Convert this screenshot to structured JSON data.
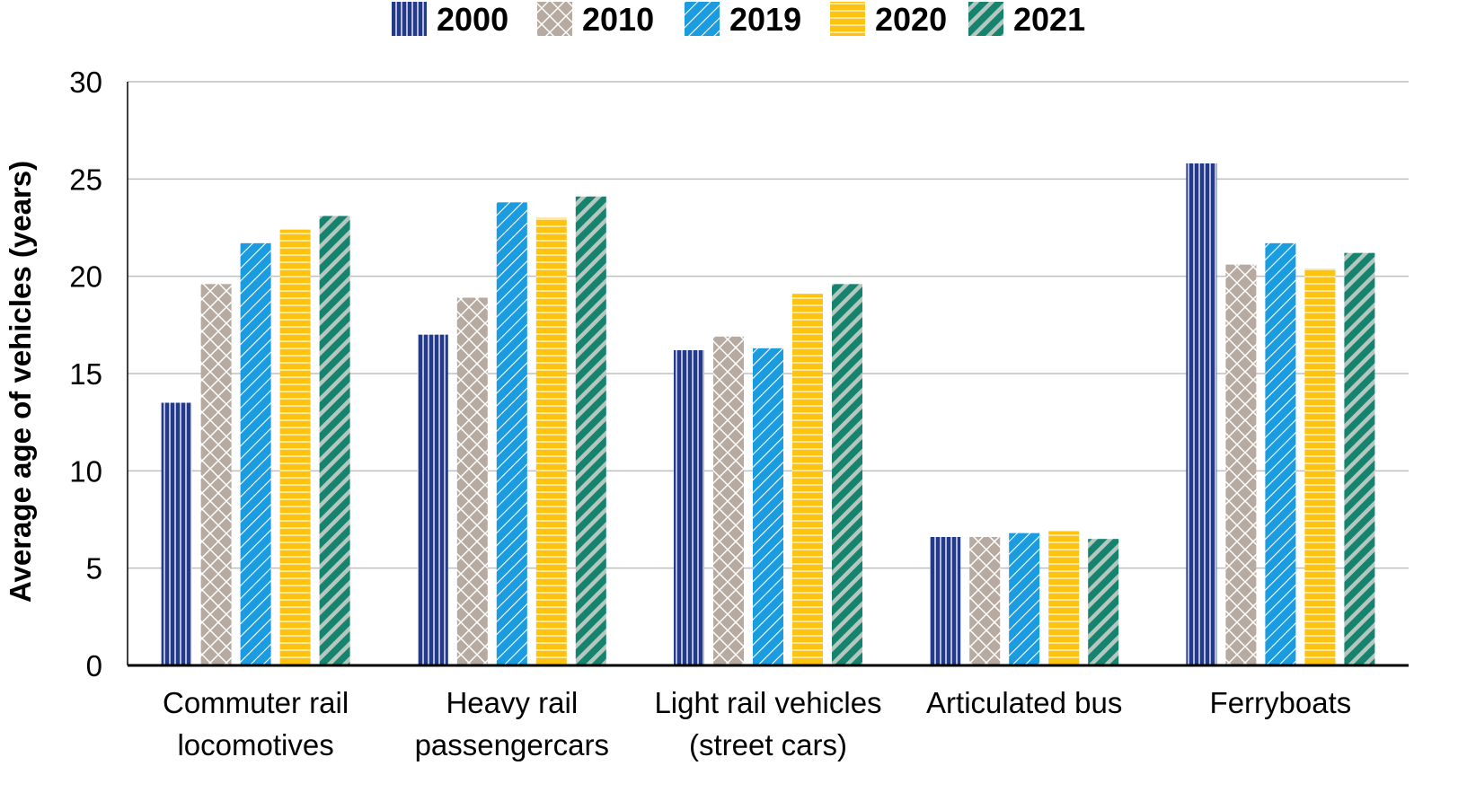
{
  "chart_data": {
    "type": "bar",
    "title": "",
    "xlabel": "",
    "ylabel": "Average age of vehicles (years)",
    "ylim": [
      0,
      30
    ],
    "yticks": [
      0,
      5,
      10,
      15,
      20,
      25,
      30
    ],
    "grid": true,
    "legend_position": "top-center",
    "categories": [
      [
        "Commuter rail",
        "locomotives"
      ],
      [
        "Heavy rail",
        "passengercars"
      ],
      [
        "Light rail vehicles",
        "(street cars)"
      ],
      [
        "Articulated bus"
      ],
      [
        "Ferryboats"
      ]
    ],
    "series": [
      {
        "name": "2000",
        "values": [
          13.5,
          17.0,
          16.2,
          6.6,
          25.8
        ],
        "color": "#233a8b",
        "pattern": "vertical-lines"
      },
      {
        "name": "2010",
        "values": [
          19.6,
          18.9,
          16.9,
          6.6,
          20.6
        ],
        "color": "#b7aaa1",
        "pattern": "crosshatch"
      },
      {
        "name": "2019",
        "values": [
          21.7,
          23.8,
          16.3,
          6.8,
          21.7
        ],
        "color": "#1b9be0",
        "pattern": "diagonal-white"
      },
      {
        "name": "2020",
        "values": [
          22.4,
          23.0,
          19.1,
          6.9,
          20.4
        ],
        "color": "#ffc20e",
        "pattern": "horizontal-lines"
      },
      {
        "name": "2021",
        "values": [
          23.1,
          24.1,
          19.6,
          6.5,
          21.2
        ],
        "color": "#16836f",
        "pattern": "diagonal-grey"
      }
    ]
  }
}
